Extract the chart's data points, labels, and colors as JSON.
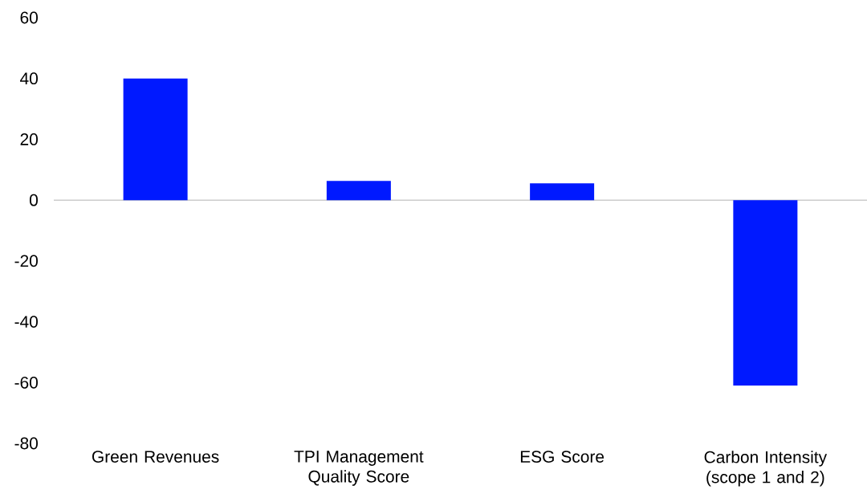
{
  "chart_data": {
    "type": "bar",
    "categories": [
      "Green Revenues",
      "TPI Management Quality Score",
      "ESG Score",
      "Carbon Intensity (scope 1 and 2)"
    ],
    "values": [
      40,
      6.3,
      5.5,
      -61
    ],
    "color": "#0019ff",
    "ylim": [
      -80,
      60
    ],
    "yticks": [
      -80,
      -60,
      -40,
      -20,
      0,
      20,
      40,
      60
    ]
  }
}
